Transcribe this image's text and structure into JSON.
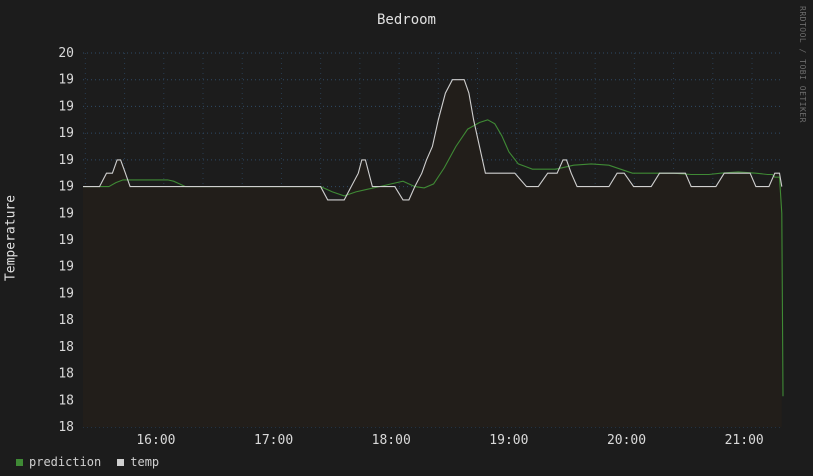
{
  "chart_data": {
    "type": "line",
    "title": "Bedroom",
    "ylabel": "Temperature",
    "watermark": "RRDTOOL / TOBI OETIKER",
    "y_ticks": [
      "20",
      "19",
      "19",
      "19",
      "19",
      "19",
      "19",
      "19",
      "19",
      "19",
      "18",
      "18",
      "18",
      "18",
      "18"
    ],
    "y_tick_values": [
      20.0,
      19.8,
      19.6,
      19.4,
      19.2,
      19.0,
      18.8,
      18.6,
      18.4,
      18.2,
      18.0,
      17.8,
      17.6,
      17.4,
      17.2
    ],
    "ylim": [
      17.2,
      20.0
    ],
    "x_ticks": [
      "16:00",
      "17:00",
      "18:00",
      "19:00",
      "20:00",
      "21:00"
    ],
    "x_tick_values": [
      16.0,
      17.0,
      18.0,
      19.0,
      20.0,
      21.0
    ],
    "xlim": [
      15.38,
      21.33
    ],
    "grid": true,
    "legend_position": "bottom-left",
    "colors": {
      "background": "#1c1c1c",
      "plot_area": "#1c1c1c",
      "area_fill": "#221e1a",
      "grid": "#2e4a66",
      "prediction": "#3f8a35",
      "temp": "#cfcfcf"
    },
    "series": [
      {
        "name": "temp",
        "x": [
          15.38,
          15.52,
          15.58,
          15.63,
          15.67,
          15.7,
          15.74,
          15.78,
          15.82,
          15.86,
          17.4,
          17.46,
          17.6,
          17.66,
          17.72,
          17.75,
          17.78,
          17.84,
          17.9,
          18.03,
          18.1,
          18.15,
          18.2,
          18.26,
          18.3,
          18.35,
          18.4,
          18.46,
          18.52,
          18.56,
          18.58,
          18.62,
          18.66,
          18.7,
          18.75,
          18.8,
          18.86,
          19.05,
          19.15,
          19.25,
          19.33,
          19.41,
          19.46,
          19.49,
          19.53,
          19.58,
          19.66,
          19.78,
          19.85,
          19.92,
          19.98,
          20.06,
          20.21,
          20.28,
          20.5,
          20.55,
          20.76,
          20.83,
          21.05,
          21.1,
          21.21,
          21.26,
          21.3,
          21.32
        ],
        "y": [
          19.0,
          19.0,
          19.1,
          19.1,
          19.2,
          19.2,
          19.1,
          19.0,
          19.0,
          19.0,
          19.0,
          18.9,
          18.9,
          19.0,
          19.1,
          19.2,
          19.2,
          19.0,
          19.0,
          19.0,
          18.9,
          18.9,
          19.0,
          19.1,
          19.2,
          19.3,
          19.5,
          19.7,
          19.8,
          19.8,
          19.8,
          19.8,
          19.7,
          19.5,
          19.3,
          19.1,
          19.1,
          19.1,
          19.0,
          19.0,
          19.1,
          19.1,
          19.2,
          19.2,
          19.1,
          19.0,
          19.0,
          19.0,
          19.0,
          19.1,
          19.1,
          19.0,
          19.0,
          19.1,
          19.1,
          19.0,
          19.0,
          19.1,
          19.1,
          19.0,
          19.0,
          19.1,
          19.1,
          19.0
        ]
      },
      {
        "name": "prediction",
        "x": [
          15.38,
          15.6,
          15.66,
          15.72,
          15.78,
          15.9,
          16.1,
          16.15,
          16.2,
          16.25,
          17.4,
          17.5,
          17.6,
          17.7,
          17.8,
          17.9,
          18.0,
          18.1,
          18.2,
          18.28,
          18.36,
          18.45,
          18.55,
          18.65,
          18.75,
          18.82,
          18.88,
          18.94,
          19.0,
          19.08,
          19.14,
          19.2,
          19.26,
          19.4,
          19.55,
          19.7,
          19.85,
          19.95,
          20.05,
          20.2,
          20.4,
          20.55,
          20.65,
          20.7,
          20.8,
          20.95,
          21.1,
          21.2,
          21.24,
          21.26,
          21.3,
          21.32,
          21.33
        ],
        "y": [
          19.0,
          19.0,
          19.03,
          19.05,
          19.05,
          19.05,
          19.05,
          19.04,
          19.02,
          19.0,
          19.0,
          18.96,
          18.93,
          18.96,
          18.98,
          19.0,
          19.02,
          19.04,
          19.0,
          18.99,
          19.02,
          19.14,
          19.3,
          19.43,
          19.48,
          19.5,
          19.47,
          19.38,
          19.26,
          19.17,
          19.15,
          19.13,
          19.13,
          19.13,
          19.16,
          19.17,
          19.16,
          19.13,
          19.1,
          19.1,
          19.1,
          19.09,
          19.09,
          19.09,
          19.1,
          19.11,
          19.1,
          19.09,
          19.09,
          19.07,
          19.07,
          18.8,
          17.43
        ]
      }
    ]
  }
}
